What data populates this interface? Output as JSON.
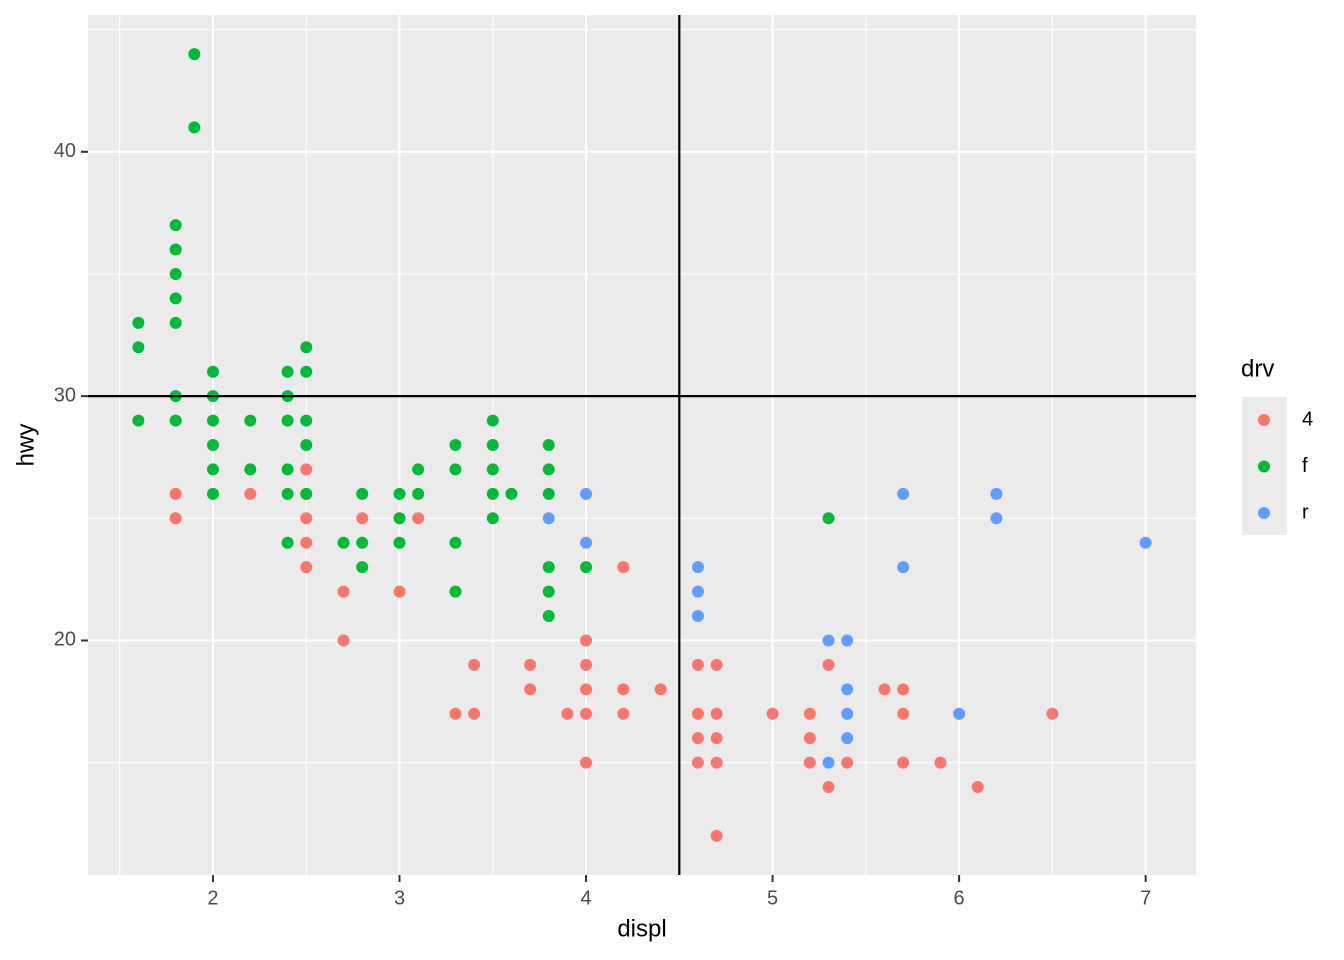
{
  "chart_data": {
    "type": "scatter",
    "x_label": "displ",
    "y_label": "hwy",
    "xlim": [
      1.33,
      7.27
    ],
    "ylim": [
      10.4,
      45.6
    ],
    "xticks": [
      2,
      3,
      4,
      5,
      6,
      7
    ],
    "yticks": [
      20,
      30,
      40
    ],
    "xminorticks": [
      1.5,
      2.5,
      3.5,
      4.5,
      5.5,
      6.5
    ],
    "yminorticks": [
      15,
      25,
      35,
      45
    ],
    "grid": true,
    "hline": 30,
    "vline": 4.5,
    "legend_title": "drv",
    "legend_position": "right",
    "series": [
      {
        "name": "4",
        "color": "#F8766D",
        "x": [
          1.8,
          1.8,
          2.2,
          2.5,
          2.5,
          2.5,
          2.5,
          2.5,
          2.7,
          2.7,
          2.8,
          3.0,
          3.1,
          3.3,
          3.4,
          3.4,
          3.7,
          3.7,
          3.9,
          4.0,
          4.0,
          4.0,
          4.0,
          4.0,
          4.2,
          4.2,
          4.2,
          4.4,
          4.6,
          4.6,
          4.6,
          4.6,
          4.7,
          4.7,
          4.7,
          4.7,
          4.7,
          5.0,
          5.2,
          5.2,
          5.2,
          5.3,
          5.3,
          5.4,
          5.6,
          5.7,
          5.7,
          5.7,
          5.9,
          6.1,
          6.5
        ],
        "values": [
          26,
          25,
          26,
          27,
          26,
          25,
          24,
          23,
          22,
          20,
          25,
          22,
          25,
          17,
          19,
          17,
          19,
          18,
          17,
          20,
          19,
          18,
          17,
          15,
          23,
          18,
          17,
          18,
          19,
          17,
          16,
          15,
          19,
          17,
          16,
          15,
          12,
          17,
          17,
          16,
          15,
          19,
          14,
          15,
          18,
          18,
          17,
          15,
          15,
          14,
          17
        ]
      },
      {
        "name": "f",
        "color": "#00BA38",
        "x": [
          1.6,
          1.6,
          1.6,
          1.8,
          1.8,
          1.8,
          1.8,
          1.8,
          1.8,
          1.8,
          1.9,
          1.9,
          2.0,
          2.0,
          2.0,
          2.0,
          2.0,
          2.0,
          2.2,
          2.2,
          2.4,
          2.4,
          2.4,
          2.4,
          2.4,
          2.4,
          2.5,
          2.5,
          2.5,
          2.5,
          2.5,
          2.7,
          2.8,
          2.8,
          2.8,
          3.0,
          3.0,
          3.0,
          3.1,
          3.1,
          3.3,
          3.3,
          3.3,
          3.3,
          3.5,
          3.5,
          3.5,
          3.5,
          3.5,
          3.6,
          3.8,
          3.8,
          3.8,
          3.8,
          3.8,
          3.8,
          4.0,
          5.3
        ],
        "values": [
          33,
          32,
          29,
          37,
          36,
          35,
          34,
          33,
          30,
          29,
          44,
          41,
          31,
          30,
          29,
          28,
          27,
          26,
          29,
          27,
          31,
          30,
          29,
          27,
          26,
          24,
          32,
          31,
          29,
          28,
          26,
          24,
          26,
          24,
          23,
          26,
          25,
          24,
          27,
          26,
          28,
          27,
          24,
          22,
          29,
          28,
          27,
          26,
          25,
          26,
          28,
          27,
          26,
          23,
          22,
          21,
          23,
          25
        ]
      },
      {
        "name": "r",
        "color": "#619CFF",
        "x": [
          3.8,
          4.0,
          4.0,
          4.6,
          4.6,
          4.6,
          5.3,
          5.3,
          5.4,
          5.4,
          5.4,
          5.4,
          5.7,
          5.7,
          6.0,
          6.2,
          6.2,
          7.0
        ],
        "values": [
          25,
          26,
          24,
          23,
          22,
          21,
          20,
          15,
          20,
          18,
          17,
          16,
          26,
          23,
          17,
          26,
          25,
          24
        ]
      }
    ]
  }
}
